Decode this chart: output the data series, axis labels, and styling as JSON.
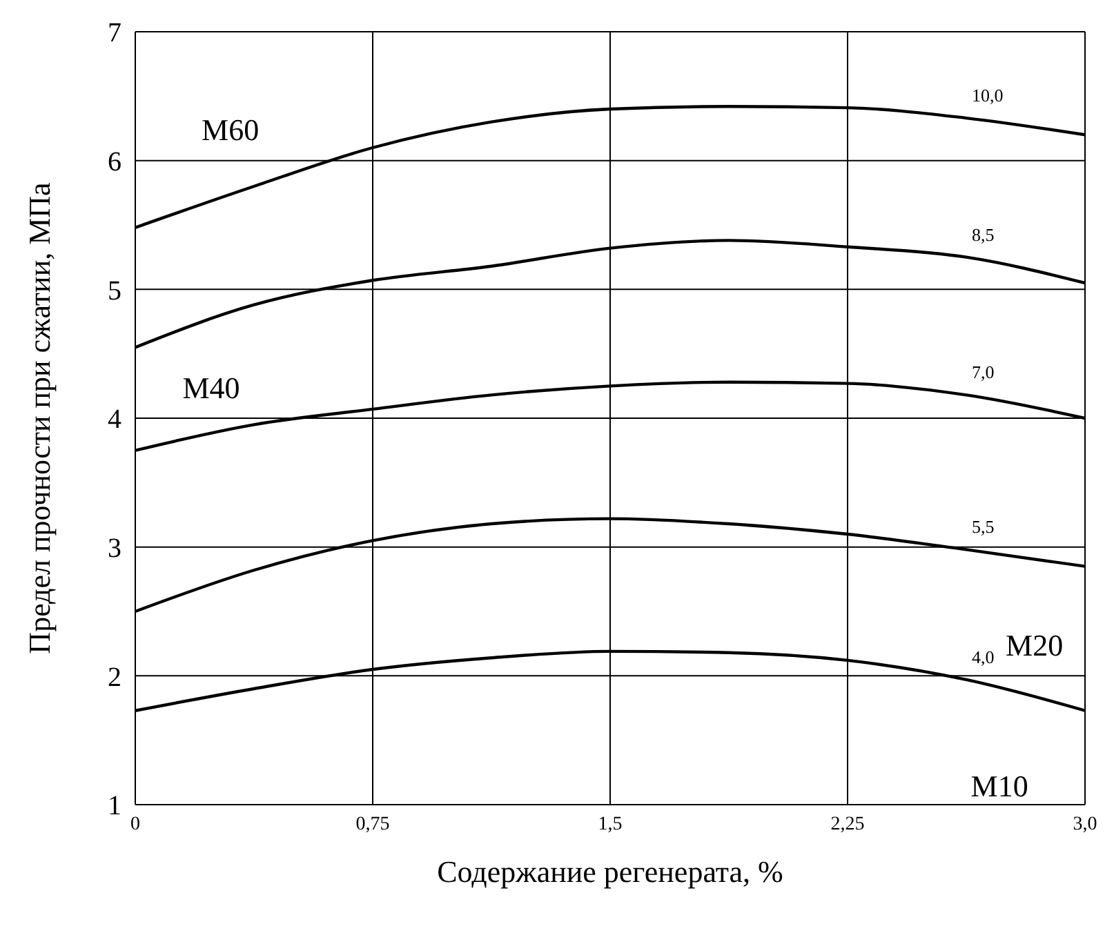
{
  "chart_data": {
    "type": "line",
    "xlabel": "Содержание регенерата, %",
    "ylabel": "Предел прочности при сжатии, МПа",
    "x": [
      0,
      0.375,
      0.75,
      1.125,
      1.5,
      1.875,
      2.25,
      2.625,
      3.0
    ],
    "series": [
      {
        "name": "10,0",
        "color": "#000000",
        "values": [
          5.48,
          5.8,
          6.1,
          6.3,
          6.4,
          6.42,
          6.41,
          6.33,
          6.2
        ]
      },
      {
        "name": "8,5",
        "color": "#000000",
        "values": [
          4.55,
          4.88,
          5.07,
          5.18,
          5.32,
          5.38,
          5.33,
          5.25,
          5.05
        ]
      },
      {
        "name": "7,0",
        "color": "#000000",
        "values": [
          3.75,
          3.95,
          4.07,
          4.18,
          4.25,
          4.28,
          4.27,
          4.18,
          4.0
        ]
      },
      {
        "name": "5,5",
        "color": "#000000",
        "values": [
          2.5,
          2.82,
          3.05,
          3.18,
          3.22,
          3.18,
          3.1,
          2.98,
          2.85
        ]
      },
      {
        "name": "4,0",
        "color": "#000000",
        "values": [
          1.73,
          1.9,
          2.05,
          2.14,
          2.19,
          2.18,
          2.12,
          1.97,
          1.73
        ]
      }
    ],
    "annotations": [
      "M60",
      "M40",
      "M20",
      "M10"
    ],
    "xlim": [
      0,
      3.0
    ],
    "xticks": [
      0,
      {
        "value": 0.75,
        "label": "0,75"
      },
      {
        "value": 1.5,
        "label": "1,5"
      },
      {
        "value": 2.25,
        "label": "2,25"
      },
      {
        "value": 3.0,
        "label": "3,0"
      }
    ],
    "ylim": [
      1,
      7
    ],
    "yticks": [
      1,
      2,
      3,
      4,
      5,
      6,
      7
    ],
    "grid": true,
    "marker": "none",
    "line_style": "solid"
  }
}
